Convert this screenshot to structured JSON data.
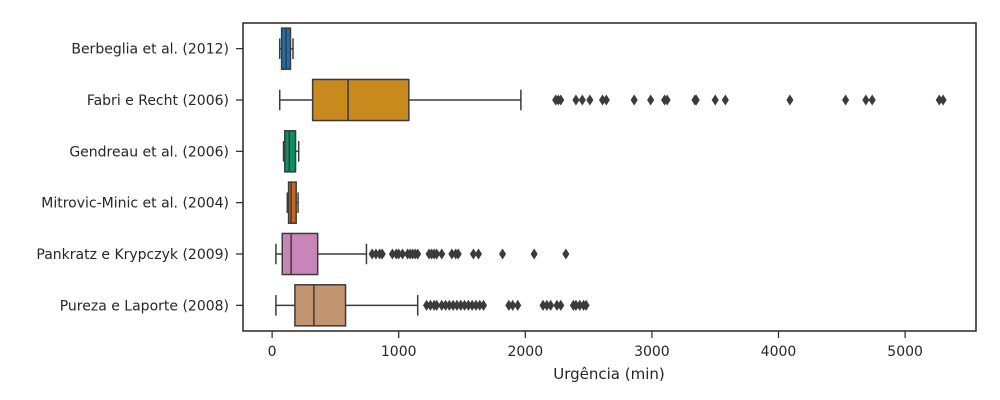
{
  "chart_data": {
    "type": "box",
    "orientation": "horizontal",
    "xlabel": "Urgência (min)",
    "ylabel": "",
    "title": "",
    "xlim": [
      -230,
      5560
    ],
    "xticks": [
      0,
      1000,
      2000,
      3000,
      4000,
      5000
    ],
    "grid": false,
    "series": [
      {
        "name": "Berbeglia et al. (2012)",
        "color": "#1f6fae",
        "whisker_low": 60,
        "q1": 75,
        "median": 110,
        "q3": 145,
        "whisker_high": 165,
        "outliers": []
      },
      {
        "name": "Fabri e Recht (2006)",
        "color": "#c88a1c",
        "whisker_low": 60,
        "q1": 320,
        "median": 600,
        "q3": 1080,
        "whisker_high": 1965,
        "outliers": [
          2240,
          2260,
          2280,
          2400,
          2450,
          2510,
          2610,
          2640,
          2860,
          2990,
          3100,
          3120,
          3340,
          3350,
          3500,
          3580,
          4090,
          4530,
          4690,
          4740,
          5270,
          5300
        ]
      },
      {
        "name": "Gendreau et al. (2006)",
        "color": "#0d8f64",
        "whisker_low": 90,
        "q1": 100,
        "median": 135,
        "q3": 185,
        "whisker_high": 210,
        "outliers": []
      },
      {
        "name": "Mitrovic-Minic et al. (2004)",
        "color": "#c9651b",
        "whisker_low": 120,
        "q1": 130,
        "median": 150,
        "q3": 190,
        "whisker_high": 205,
        "outliers": []
      },
      {
        "name": "Pankratz e Krypczyk (2009)",
        "color": "#c886b8",
        "whisker_low": 30,
        "q1": 80,
        "median": 150,
        "q3": 360,
        "whisker_high": 745,
        "outliers": [
          790,
          820,
          850,
          870,
          950,
          980,
          1000,
          1030,
          1070,
          1090,
          1110,
          1130,
          1150,
          1240,
          1260,
          1280,
          1300,
          1340,
          1420,
          1450,
          1470,
          1590,
          1630,
          1820,
          2070,
          2320
        ]
      },
      {
        "name": "Pureza e Laporte (2008)",
        "color": "#c29570",
        "whisker_low": 30,
        "q1": 180,
        "median": 330,
        "q3": 580,
        "whisker_high": 1150,
        "outliers": [
          1220,
          1250,
          1280,
          1300,
          1340,
          1370,
          1400,
          1430,
          1460,
          1490,
          1520,
          1550,
          1580,
          1610,
          1640,
          1670,
          1870,
          1900,
          1940,
          2140,
          2170,
          2200,
          2250,
          2280,
          2380,
          2400,
          2430,
          2460,
          2480
        ]
      }
    ]
  }
}
